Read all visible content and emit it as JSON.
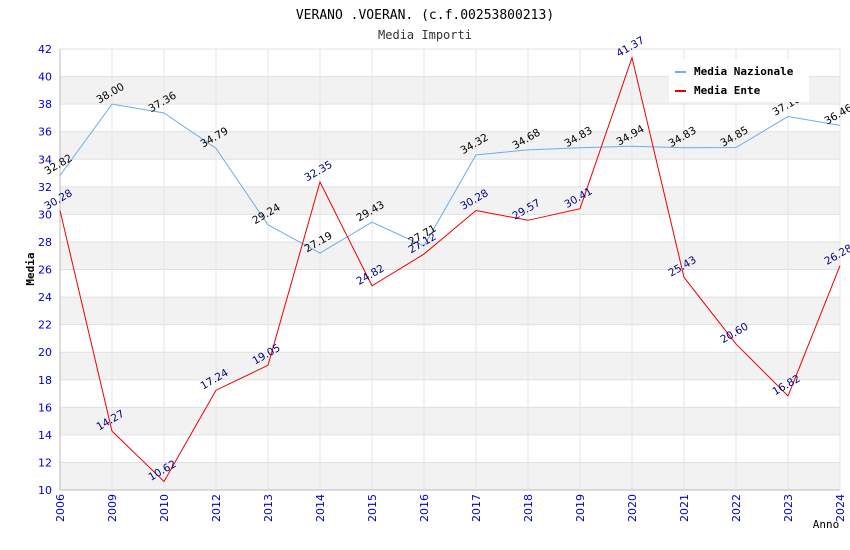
{
  "chart_data": {
    "type": "line",
    "title": "VERANO .VOERAN. (c.f.00253800213)",
    "subtitle": "Media Importi",
    "xlabel": "Anno",
    "ylabel": "Media",
    "categories": [
      "2006",
      "2009",
      "2010",
      "2012",
      "2013",
      "2014",
      "2015",
      "2016",
      "2017",
      "2018",
      "2019",
      "2020",
      "2021",
      "2022",
      "2023",
      "2024"
    ],
    "ylim": [
      10,
      42
    ],
    "yticks": [
      10,
      12,
      14,
      16,
      18,
      20,
      22,
      24,
      26,
      28,
      30,
      32,
      34,
      36,
      38,
      40,
      42
    ],
    "grid": true,
    "legend_position": "top-right",
    "series": [
      {
        "name": "Media Nazionale",
        "color": "#6aaee8",
        "label_color": "#000000",
        "values": [
          32.82,
          38.0,
          37.36,
          34.79,
          29.24,
          27.19,
          29.43,
          27.71,
          34.32,
          34.68,
          34.83,
          34.94,
          34.83,
          34.85,
          37.1,
          36.46
        ],
        "labels": [
          "32.82",
          "38.00",
          "37.36",
          "34.79",
          "29.24",
          "27.19",
          "29.43",
          "27.71",
          "34.32",
          "34.68",
          "34.83",
          "34.94",
          "34.83",
          "34.85",
          "37.10",
          "36.46"
        ]
      },
      {
        "name": "Media Ente",
        "color": "#ee0000",
        "label_color": "#000080",
        "values": [
          30.28,
          14.27,
          10.62,
          17.24,
          19.05,
          32.35,
          24.82,
          27.12,
          30.28,
          29.57,
          30.41,
          41.37,
          25.43,
          20.6,
          16.82,
          26.28
        ],
        "labels": [
          "30.28",
          "14.27",
          "10.62",
          "17.24",
          "19.05",
          "32.35",
          "24.82",
          "27.12",
          "30.28",
          "29.57",
          "30.41",
          "41.37",
          "25.43",
          "20.60",
          "16.82",
          "26.28"
        ]
      }
    ]
  }
}
